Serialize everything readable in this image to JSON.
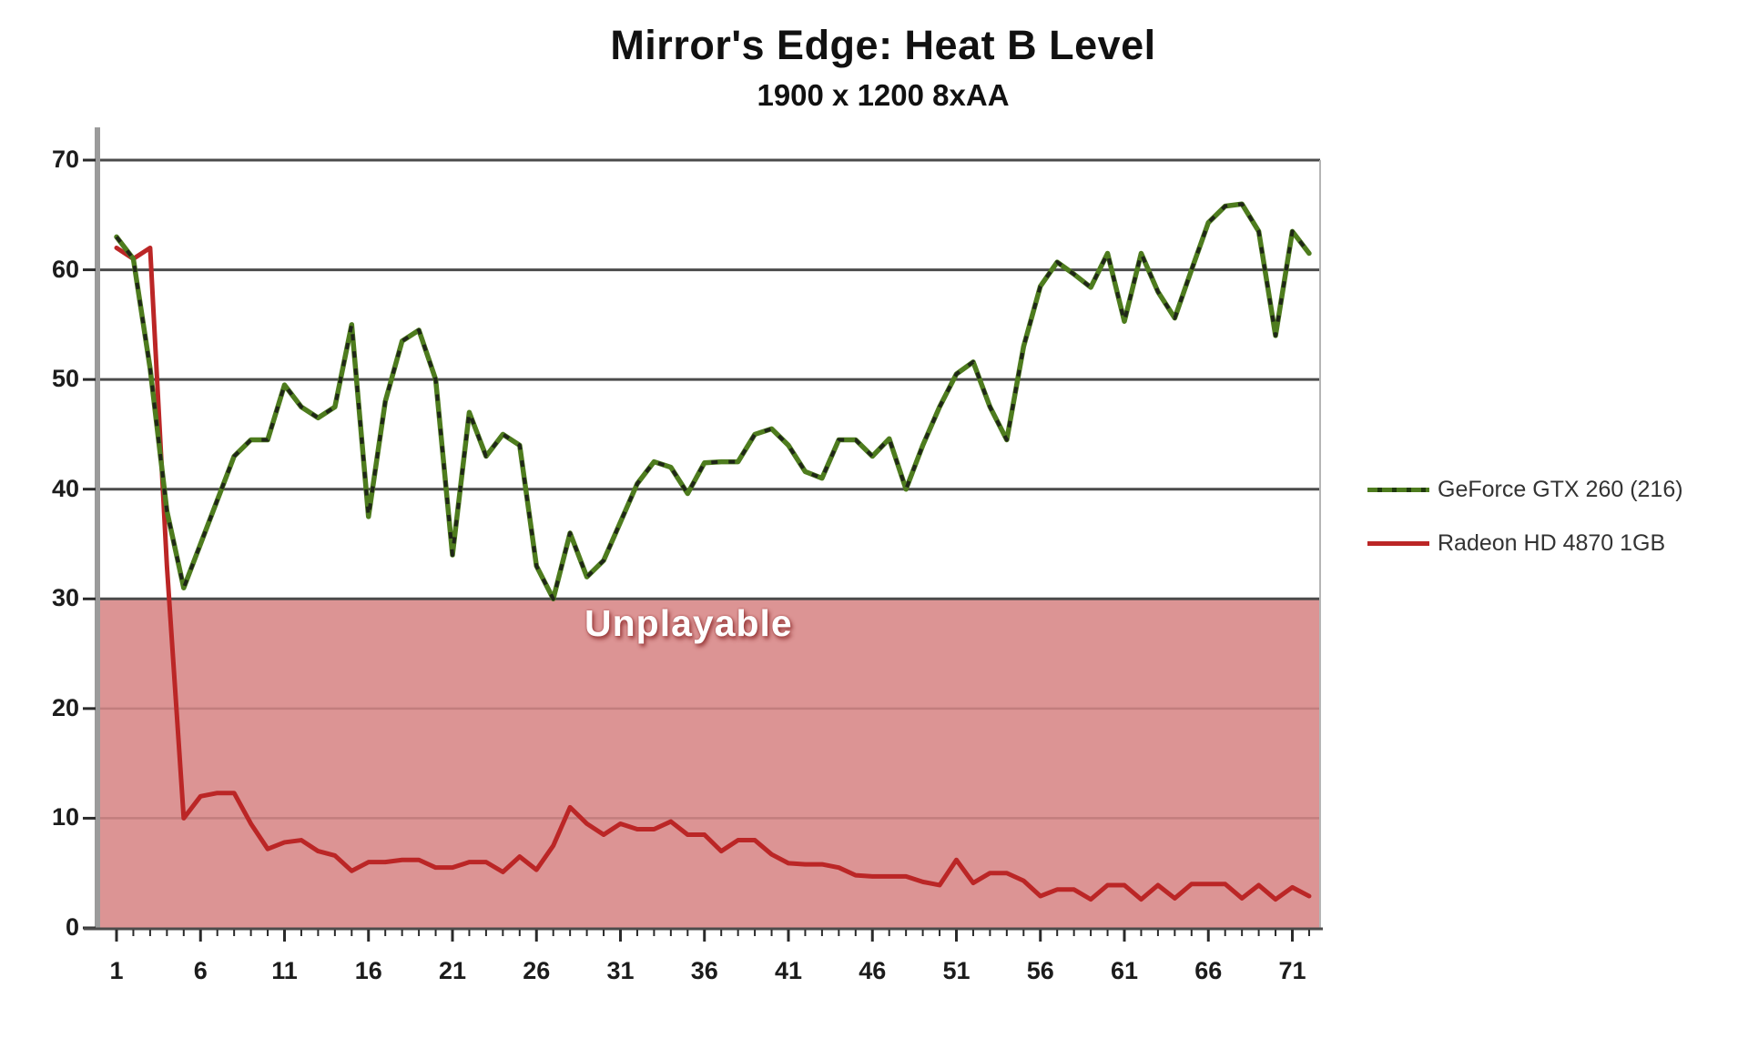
{
  "header": {
    "title": "Mirror's Edge: Heat B Level",
    "subtitle": "1900 x 1200 8xAA"
  },
  "legend": [
    {
      "label": "GeForce GTX 260 (216)",
      "color": "#4e7c1e"
    },
    {
      "label": "Radeon HD 4870 1GB",
      "color": "#bb2626"
    }
  ],
  "colors": {
    "grid_dark": "#4b4b4b",
    "grid_muted": "#c27e7e",
    "axis_bar": "#9b9b9b",
    "band_fill": "#dc9494",
    "band_edge": "#8a5252",
    "right_border": "#b5b5b5",
    "green_line": "#4e7c1e",
    "green_dash": "#181818",
    "red_line": "#bb2626",
    "tick": "#2a2a2a"
  },
  "chart_data": {
    "type": "line",
    "title": "Mirror's Edge: Heat B Level",
    "subtitle": "1900 x 1200 8xAA",
    "xlabel": "",
    "ylabel": "",
    "ylim": [
      0,
      70
    ],
    "y_ticks": [
      0,
      10,
      20,
      30,
      40,
      50,
      60,
      70
    ],
    "x_ticks": [
      1,
      6,
      11,
      16,
      21,
      26,
      31,
      36,
      41,
      46,
      51,
      56,
      61,
      66,
      71
    ],
    "frames": 72,
    "grid": true,
    "legend_position": "right",
    "unplayable_band": {
      "from": 0,
      "to": 30,
      "label": "Unplayable"
    },
    "series": [
      {
        "name": "GeForce GTX 260 (216)",
        "color": "#4e7c1e",
        "values": [
          63,
          61,
          51,
          38,
          31,
          35,
          39,
          43,
          44.5,
          44.5,
          49.5,
          47.5,
          46.5,
          47.5,
          55,
          37.5,
          48,
          53.5,
          54.5,
          50,
          34,
          47,
          43,
          45,
          44,
          33,
          30,
          36,
          32,
          33.5,
          37,
          40.5,
          42.5,
          42,
          39.6,
          42.4,
          42.5,
          42.5,
          45,
          45.5,
          44,
          41.6,
          41,
          44.5,
          44.5,
          43,
          44.6,
          40,
          44,
          47.5,
          50.5,
          51.6,
          47.5,
          44.5,
          53,
          58.5,
          60.7,
          59.6,
          58.4,
          61.5,
          55.3,
          61.5,
          58,
          55.6,
          60,
          64.3,
          65.8,
          66,
          63.5,
          54,
          63.5,
          61.5
        ]
      },
      {
        "name": "Radeon HD 4870 1GB",
        "color": "#bb2626",
        "values": [
          62,
          61,
          62,
          33,
          10,
          12,
          12.3,
          12.3,
          9.5,
          7.2,
          7.8,
          8,
          7,
          6.6,
          5.2,
          6,
          6,
          6.2,
          6.2,
          5.5,
          5.5,
          6,
          6,
          5.1,
          6.5,
          5.3,
          7.5,
          11,
          9.5,
          8.5,
          9.5,
          9,
          9,
          9.7,
          8.5,
          8.5,
          7,
          8,
          8,
          6.7,
          5.9,
          5.8,
          5.8,
          5.5,
          4.8,
          4.7,
          4.7,
          4.7,
          4.2,
          3.9,
          6.2,
          4.1,
          5,
          5,
          4.3,
          2.9,
          3.5,
          3.5,
          2.6,
          3.9,
          3.9,
          2.6,
          3.9,
          2.7,
          4,
          4,
          4,
          2.7,
          3.9,
          2.6,
          3.7,
          2.9
        ]
      }
    ]
  }
}
